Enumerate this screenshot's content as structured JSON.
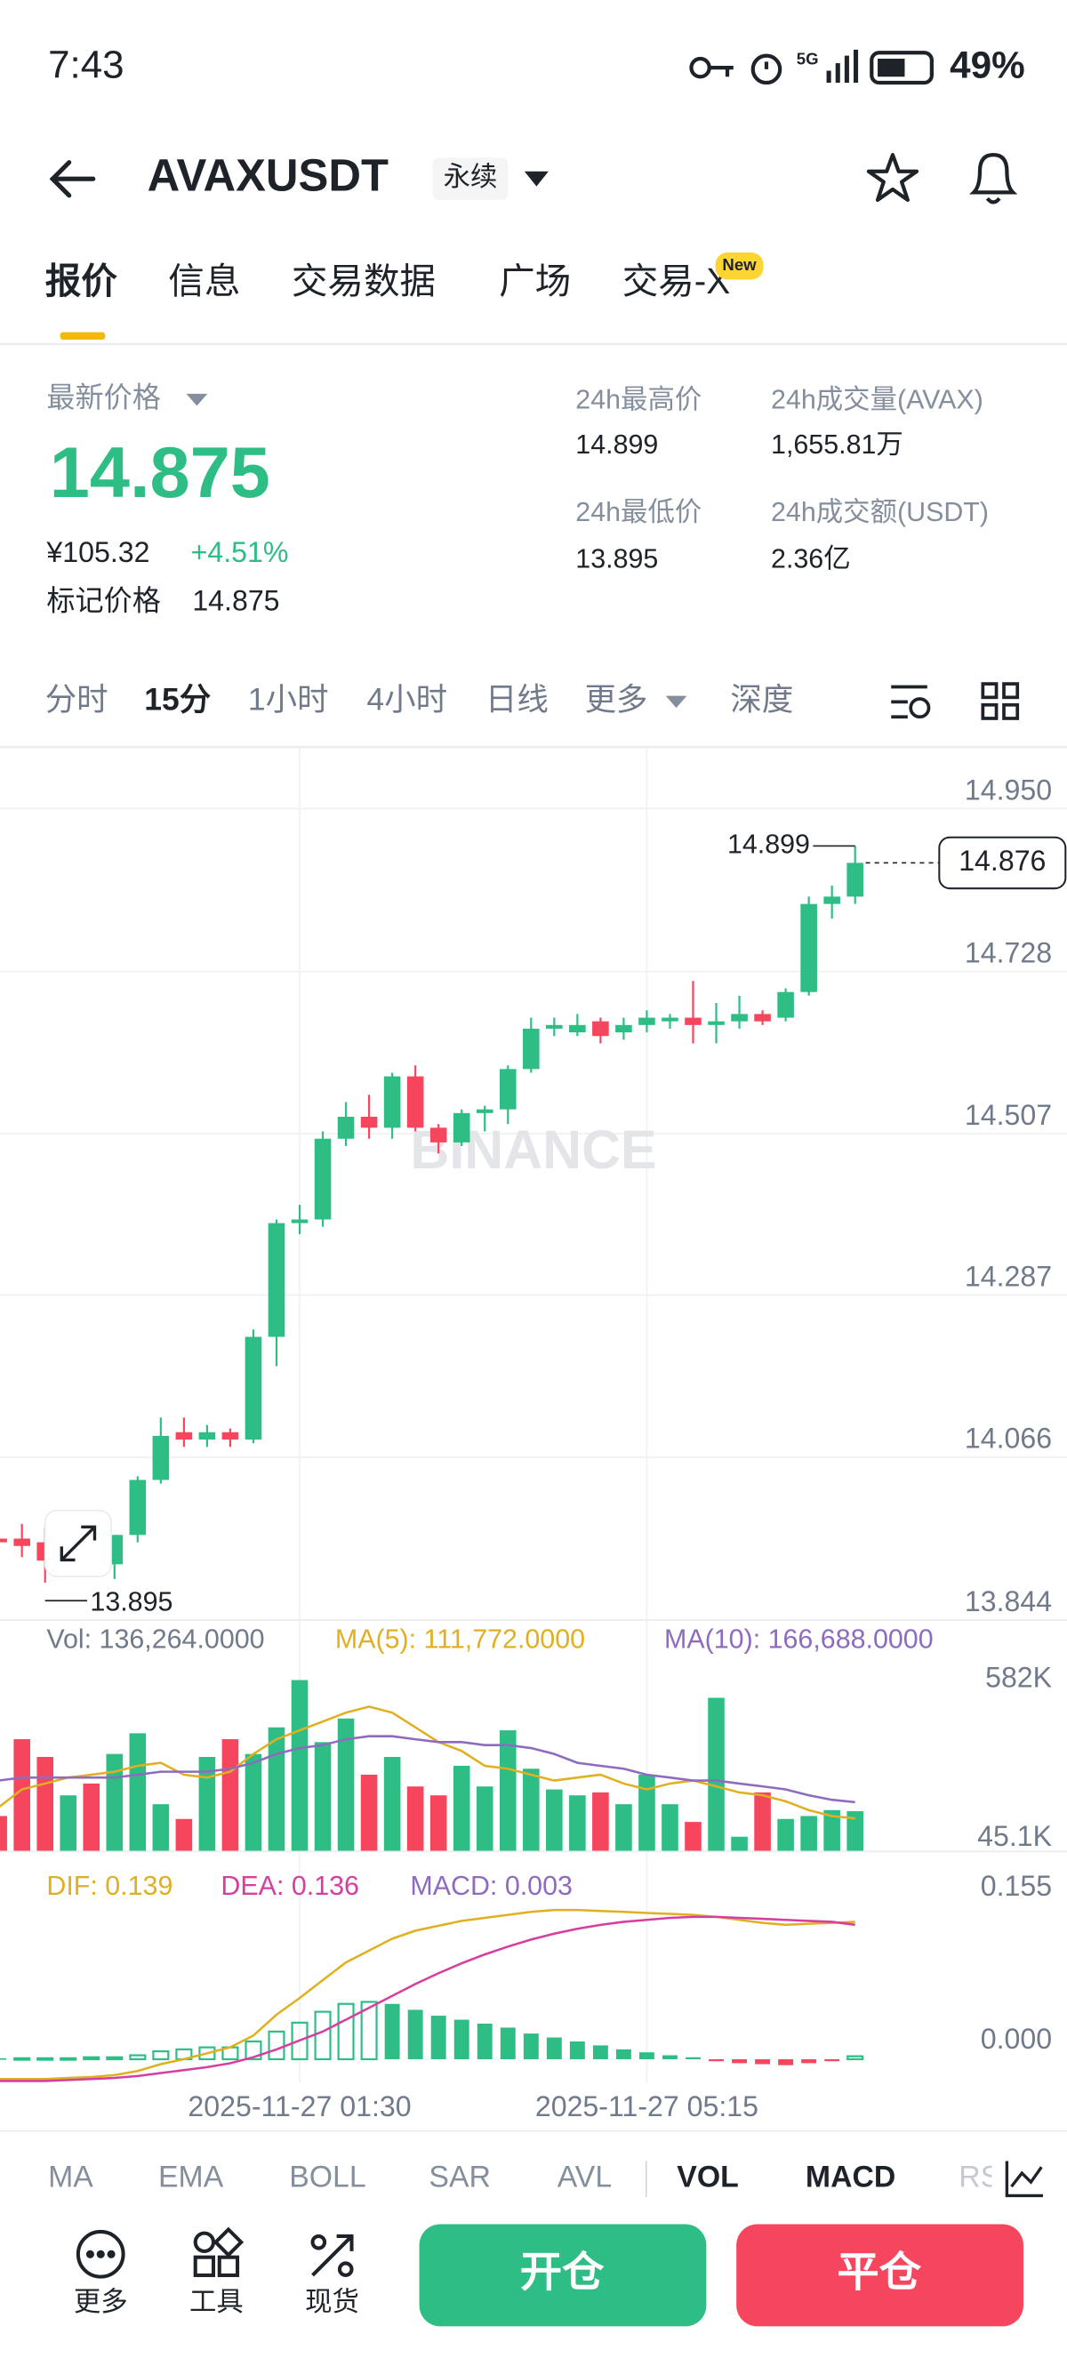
{
  "status_bar": {
    "time": "7:43",
    "network": "5G",
    "battery": "49%"
  },
  "header": {
    "symbol": "AVAXUSDT",
    "badge": "永续"
  },
  "tabs": [
    {
      "label": "报价"
    },
    {
      "label": "信息"
    },
    {
      "label": "交易数据"
    },
    {
      "label": "广场"
    },
    {
      "label": "交易-X",
      "badge": "New"
    }
  ],
  "ticker": {
    "last_price_label": "最新价格",
    "last_price": "14.875",
    "cny": "¥105.32",
    "change": "+4.51%",
    "mark_label": "标记价格",
    "mark_price": "14.875",
    "stats": [
      {
        "label": "24h最高价",
        "value": "14.899"
      },
      {
        "label": "24h成交量(AVAX)",
        "value": "1,655.81万"
      },
      {
        "label": "24h最低价",
        "value": "13.895"
      },
      {
        "label": "24h成交额(USDT)",
        "value": "2.36亿"
      }
    ]
  },
  "intervals": [
    "分时",
    "15分",
    "1小时",
    "4小时",
    "日线",
    "更多",
    "深度"
  ],
  "chart_data": [
    {
      "type": "candlestick",
      "categories": [
        null,
        null,
        null,
        null,
        null,
        null,
        null,
        null,
        null,
        null,
        null,
        null,
        null,
        "2025-11-27 01:30",
        null,
        null,
        null,
        null,
        null,
        null,
        null,
        null,
        null,
        null,
        null,
        null,
        null,
        null,
        "2025-11-27 05:15",
        null,
        null,
        null,
        null,
        null,
        null,
        null,
        null,
        null
      ],
      "open": [
        13.955,
        13.955,
        13.95,
        13.925,
        13.955,
        13.92,
        13.96,
        14.035,
        14.1,
        14.09,
        14.1,
        14.09,
        14.23,
        14.385,
        14.39,
        14.5,
        14.53,
        14.515,
        14.585,
        14.515,
        14.495,
        14.535,
        14.54,
        14.595,
        14.65,
        14.645,
        14.66,
        14.645,
        14.655,
        14.66,
        14.665,
        14.655,
        14.66,
        14.67,
        14.665,
        14.7,
        14.82,
        14.83
      ],
      "high": [
        13.97,
        13.975,
        13.97,
        13.96,
        13.96,
        13.96,
        14.04,
        14.12,
        14.12,
        14.11,
        14.105,
        14.24,
        14.39,
        14.41,
        14.51,
        14.55,
        14.56,
        14.59,
        14.6,
        14.52,
        14.54,
        14.545,
        14.6,
        14.665,
        14.665,
        14.67,
        14.665,
        14.665,
        14.675,
        14.67,
        14.715,
        14.685,
        14.695,
        14.675,
        14.705,
        14.83,
        14.845,
        14.899
      ],
      "low": [
        13.93,
        13.93,
        13.895,
        13.92,
        13.91,
        13.9,
        13.95,
        14.03,
        14.08,
        14.08,
        14.08,
        14.085,
        14.19,
        14.37,
        14.38,
        14.49,
        14.5,
        14.5,
        14.51,
        14.48,
        14.49,
        14.51,
        14.52,
        14.59,
        14.64,
        14.64,
        14.63,
        14.635,
        14.645,
        14.65,
        14.63,
        14.63,
        14.65,
        14.655,
        14.66,
        14.695,
        14.8,
        14.82
      ],
      "close": [
        13.95,
        13.945,
        13.925,
        13.955,
        13.92,
        13.96,
        14.035,
        14.095,
        14.09,
        14.1,
        14.09,
        14.23,
        14.385,
        14.39,
        14.5,
        14.53,
        14.515,
        14.585,
        14.515,
        14.495,
        14.535,
        14.54,
        14.595,
        14.65,
        14.655,
        14.655,
        14.64,
        14.655,
        14.665,
        14.665,
        14.655,
        14.66,
        14.67,
        14.66,
        14.7,
        14.82,
        14.83,
        14.876
      ],
      "up_color": "#2ebd85",
      "down_color": "#f6465d",
      "ylim": [
        13.844,
        14.95
      ],
      "yticks": [
        {
          "value": 14.95,
          "label": "14.950"
        },
        14.728,
        14.507,
        14.287,
        14.066,
        13.844
      ],
      "grid": true,
      "watermark": "BINANCE",
      "annotations": {
        "high": 14.899,
        "low": 13.895,
        "last": 14.876
      }
    },
    {
      "type": "volume",
      "label": "Vol: 136,264.0000",
      "values": [
        120000,
        380000,
        320000,
        190000,
        230000,
        330000,
        400000,
        160000,
        110000,
        320000,
        380000,
        330000,
        420000,
        580000,
        370000,
        450000,
        260000,
        320000,
        220000,
        190000,
        290000,
        220000,
        410000,
        280000,
        210000,
        190000,
        200000,
        160000,
        260000,
        160000,
        100000,
        520000,
        50000,
        200000,
        110000,
        120000,
        140000,
        136264
      ],
      "series": [
        {
          "label": "MA(5): 111,772.0000",
          "color": "#e0b020",
          "values": [
            150000,
            210000,
            230000,
            250000,
            260000,
            270000,
            290000,
            300000,
            260000,
            250000,
            270000,
            330000,
            380000,
            410000,
            440000,
            470000,
            490000,
            470000,
            420000,
            370000,
            340000,
            290000,
            280000,
            260000,
            240000,
            250000,
            260000,
            230000,
            210000,
            230000,
            240000,
            220000,
            200000,
            190000,
            170000,
            140000,
            120000,
            111772
          ]
        },
        {
          "label": "MA(10): 166,688.0000",
          "color": "#8e6bbf",
          "values": [
            240000,
            250000,
            250000,
            250000,
            250000,
            250000,
            260000,
            270000,
            270000,
            270000,
            280000,
            300000,
            330000,
            350000,
            360000,
            380000,
            390000,
            390000,
            380000,
            370000,
            370000,
            360000,
            360000,
            350000,
            330000,
            300000,
            290000,
            280000,
            260000,
            250000,
            240000,
            240000,
            230000,
            220000,
            210000,
            190000,
            175000,
            166688
          ]
        }
      ],
      "ylim": [
        0,
        600000
      ],
      "yticks": [
        {
          "value": 582000,
          "label": "582K"
        },
        {
          "value": 45100,
          "label": "45.1K"
        }
      ]
    },
    {
      "type": "macd",
      "label": "MACD: 0.003",
      "values": [
        0.001,
        0.001,
        0.001,
        0.001,
        0.002,
        0.002,
        0.004,
        0.008,
        0.01,
        0.012,
        0.012,
        0.018,
        0.028,
        0.037,
        0.048,
        0.056,
        0.058,
        0.056,
        0.05,
        0.044,
        0.04,
        0.036,
        0.032,
        0.026,
        0.022,
        0.018,
        0.014,
        0.01,
        0.007,
        0.004,
        0.002,
        -0.002,
        -0.004,
        -0.005,
        -0.006,
        -0.004,
        -0.002,
        0.003
      ],
      "series": [
        {
          "label": "DIF: 0.139",
          "color": "#e0b020",
          "values": [
            -0.02,
            -0.02,
            -0.02,
            -0.019,
            -0.018,
            -0.016,
            -0.012,
            -0.005,
            0,
            0.006,
            0.012,
            0.024,
            0.045,
            0.062,
            0.08,
            0.098,
            0.11,
            0.122,
            0.13,
            0.135,
            0.14,
            0.143,
            0.146,
            0.149,
            0.151,
            0.151,
            0.15,
            0.149,
            0.148,
            0.147,
            0.146,
            0.144,
            0.141,
            0.138,
            0.136,
            0.137,
            0.138,
            0.139
          ]
        },
        {
          "label": "DEA: 0.136",
          "color": "#d63ea0",
          "values": [
            -0.022,
            -0.022,
            -0.022,
            -0.021,
            -0.02,
            -0.019,
            -0.017,
            -0.014,
            -0.011,
            -0.008,
            -0.004,
            0.002,
            0.01,
            0.019,
            0.028,
            0.04,
            0.052,
            0.064,
            0.076,
            0.087,
            0.097,
            0.106,
            0.114,
            0.121,
            0.127,
            0.132,
            0.136,
            0.139,
            0.141,
            0.143,
            0.144,
            0.144,
            0.143,
            0.142,
            0.141,
            0.14,
            0.139,
            0.136
          ]
        }
      ],
      "label_color": "#8e6bbf",
      "ylim": [
        -0.027,
        0.198
      ],
      "yticks": [
        0.155,
        {
          "value": 0,
          "label": "0.000"
        }
      ]
    }
  ],
  "indicator_tabs": [
    "MA",
    "EMA",
    "BOLL",
    "SAR",
    "AVL",
    "VOL",
    "MACD",
    "RSI"
  ],
  "bottom_bar": {
    "tools": [
      "更多",
      "工具",
      "现货"
    ],
    "open": "开仓",
    "close": "平仓"
  }
}
